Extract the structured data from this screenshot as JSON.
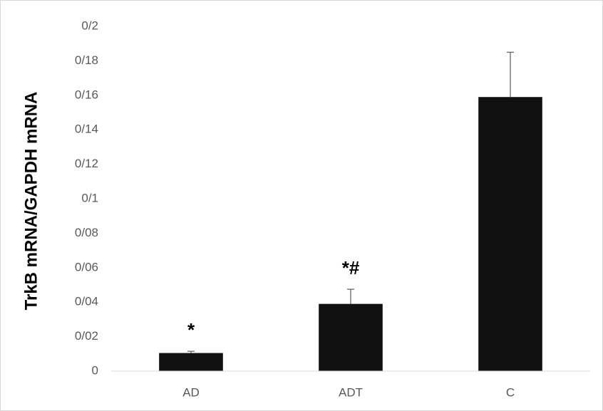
{
  "chart_data": {
    "type": "bar",
    "y_label": "TrkB mRNA/GAPDH mRNA",
    "categories": [
      "AD",
      "ADT",
      "C"
    ],
    "values": [
      0.0105,
      0.039,
      0.159
    ],
    "errors": [
      0.001,
      0.0085,
      0.026
    ],
    "annotations": [
      "*",
      "*#",
      null
    ],
    "color": "#111111",
    "ylim": [
      0,
      0.2
    ],
    "yticks": [
      0,
      {
        "value": 0.02,
        "label": "0/02"
      },
      {
        "value": 0.04,
        "label": "0/04"
      },
      {
        "value": 0.06,
        "label": "0/06"
      },
      {
        "value": 0.08,
        "label": "0/08"
      },
      {
        "value": 0.1,
        "label": "0/1"
      },
      {
        "value": 0.12,
        "label": "0/12"
      },
      {
        "value": 0.14,
        "label": "0/14"
      },
      {
        "value": 0.16,
        "label": "0/16"
      },
      {
        "value": 0.18,
        "label": "0/18"
      },
      {
        "value": 0.2,
        "label": "0/2"
      }
    ],
    "grid": false
  }
}
